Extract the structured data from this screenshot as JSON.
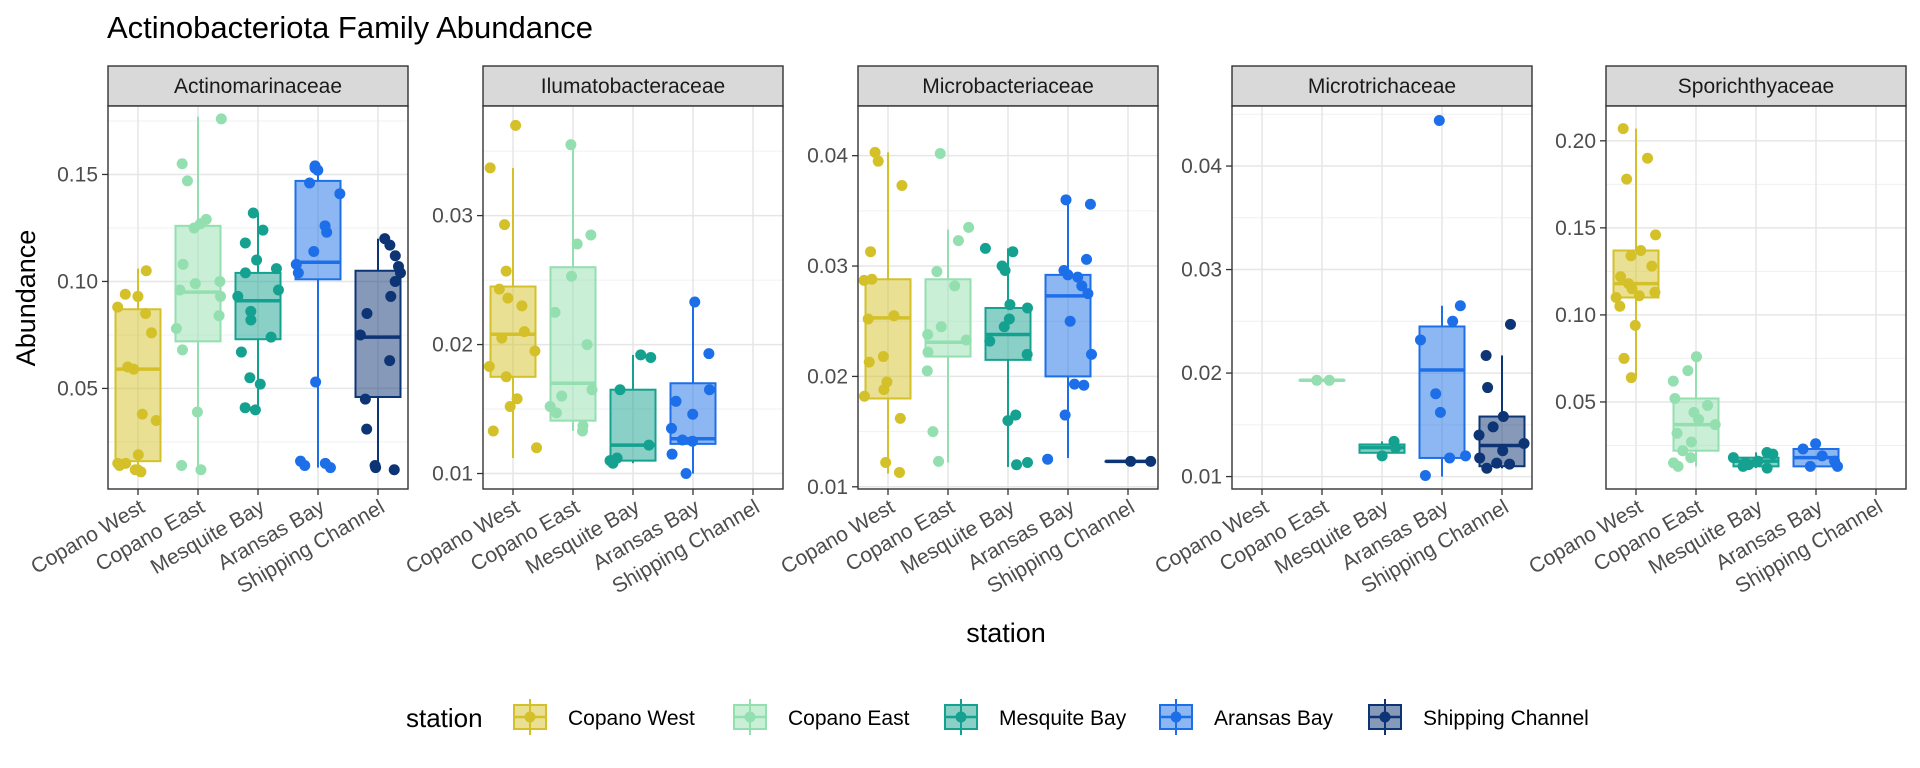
{
  "chart_data": {
    "type": "box",
    "title": "Actinobacteriota Family Abundance",
    "xlabel": "station",
    "ylabel": "Abundance",
    "legend_title": "station",
    "legend_position": "bottom",
    "categories": [
      "Copano West",
      "Copano East",
      "Mesquite Bay",
      "Aransas Bay",
      "Shipping Channel"
    ],
    "colors": {
      "Copano West": "#d4c12a",
      "Copano East": "#93dfb0",
      "Mesquite Bay": "#15a190",
      "Aransas Bay": "#1c6fe8",
      "Shipping Channel": "#0d3474"
    },
    "grid": true,
    "facets": [
      {
        "name": "Actinomarinaceae",
        "ylim": [
          0.003,
          0.182
        ],
        "yticks": [
          0.05,
          0.1,
          0.15
        ],
        "tick_labels": [
          "0.05",
          "0.10",
          "0.15"
        ],
        "boxes": [
          {
            "station": "Copano West",
            "min": 0.011,
            "q1": 0.016,
            "median": 0.059,
            "q3": 0.087,
            "max": 0.106
          },
          {
            "station": "Copano East",
            "min": 0.012,
            "q1": 0.072,
            "median": 0.095,
            "q3": 0.126,
            "max": 0.177
          },
          {
            "station": "Mesquite Bay",
            "min": 0.04,
            "q1": 0.073,
            "median": 0.091,
            "q3": 0.104,
            "max": 0.132
          },
          {
            "station": "Aransas Bay",
            "min": 0.013,
            "q1": 0.101,
            "median": 0.109,
            "q3": 0.147,
            "max": 0.154
          },
          {
            "station": "Shipping Channel",
            "min": 0.013,
            "q1": 0.046,
            "median": 0.074,
            "q3": 0.105,
            "max": 0.12
          }
        ],
        "points": [
          {
            "station": "Copano West",
            "values": [
              0.012,
              0.011,
              0.014,
              0.015,
              0.012,
              0.019,
              0.015,
              0.035,
              0.038,
              0.059,
              0.06,
              0.076,
              0.085,
              0.088,
              0.093,
              0.094,
              0.105
            ]
          },
          {
            "station": "Copano East",
            "values": [
              0.014,
              0.012,
              0.039,
              0.068,
              0.078,
              0.084,
              0.093,
              0.096,
              0.099,
              0.1,
              0.108,
              0.125,
              0.127,
              0.129,
              0.147,
              0.155,
              0.176
            ]
          },
          {
            "station": "Mesquite Bay",
            "values": [
              0.04,
              0.041,
              0.052,
              0.055,
              0.067,
              0.074,
              0.082,
              0.086,
              0.093,
              0.096,
              0.104,
              0.106,
              0.11,
              0.118,
              0.124,
              0.132
            ]
          },
          {
            "station": "Aransas Bay",
            "values": [
              0.013,
              0.015,
              0.016,
              0.014,
              0.053,
              0.104,
              0.108,
              0.114,
              0.123,
              0.126,
              0.141,
              0.146,
              0.153,
              0.152,
              0.154
            ]
          },
          {
            "station": "Shipping Channel",
            "values": [
              0.012,
              0.013,
              0.014,
              0.031,
              0.045,
              0.063,
              0.075,
              0.085,
              0.093,
              0.1,
              0.104,
              0.107,
              0.112,
              0.117,
              0.12
            ]
          }
        ]
      },
      {
        "name": "Ilumatobacteraceae",
        "ylim": [
          0.0088,
          0.0385
        ],
        "yticks": [
          0.01,
          0.02,
          0.03
        ],
        "tick_labels": [
          "0.01",
          "0.02",
          "0.03"
        ],
        "boxes": [
          {
            "station": "Copano West",
            "min": 0.0112,
            "q1": 0.0175,
            "median": 0.0208,
            "q3": 0.0245,
            "max": 0.0337
          },
          {
            "station": "Copano East",
            "min": 0.0133,
            "q1": 0.0141,
            "median": 0.017,
            "q3": 0.026,
            "max": 0.0355
          },
          {
            "station": "Mesquite Bay",
            "min": 0.0108,
            "q1": 0.011,
            "median": 0.0122,
            "q3": 0.0165,
            "max": 0.0192
          },
          {
            "station": "Aransas Bay",
            "min": 0.01,
            "q1": 0.0123,
            "median": 0.0127,
            "q3": 0.017,
            "max": 0.0233
          }
        ],
        "points": [
          {
            "station": "Copano West",
            "values": [
              0.037,
              0.0337,
              0.0293,
              0.0257,
              0.0243,
              0.0236,
              0.023,
              0.021,
              0.0205,
              0.0195,
              0.0183,
              0.0175,
              0.0158,
              0.0152,
              0.0133,
              0.012
            ]
          },
          {
            "station": "Copano East",
            "values": [
              0.0355,
              0.0285,
              0.0278,
              0.0253,
              0.0225,
              0.02,
              0.0165,
              0.016,
              0.0152,
              0.0147,
              0.0137,
              0.0133
            ]
          },
          {
            "station": "Mesquite Bay",
            "values": [
              0.0192,
              0.019,
              0.0165,
              0.0122,
              0.0112,
              0.011,
              0.0108,
              0.011
            ]
          },
          {
            "station": "Aransas Bay",
            "values": [
              0.0233,
              0.0193,
              0.0165,
              0.0156,
              0.0146,
              0.0135,
              0.0126,
              0.0125,
              0.0115,
              0.01
            ]
          }
        ]
      },
      {
        "name": "Microbacteriaceae",
        "ylim": [
          0.0098,
          0.0445
        ],
        "yticks": [
          0.01,
          0.02,
          0.03,
          0.04
        ],
        "tick_labels": [
          "0.01",
          "0.02",
          "0.03",
          "0.04"
        ],
        "boxes": [
          {
            "station": "Copano West",
            "min": 0.0112,
            "q1": 0.018,
            "median": 0.0253,
            "q3": 0.0288,
            "max": 0.0403
          },
          {
            "station": "Copano East",
            "min": 0.0122,
            "q1": 0.0218,
            "median": 0.0231,
            "q3": 0.0288,
            "max": 0.0333
          },
          {
            "station": "Mesquite Bay",
            "min": 0.0118,
            "q1": 0.0215,
            "median": 0.0238,
            "q3": 0.0262,
            "max": 0.0316
          },
          {
            "station": "Aransas Bay",
            "min": 0.0126,
            "q1": 0.02,
            "median": 0.0273,
            "q3": 0.0292,
            "max": 0.036
          },
          {
            "station": "Shipping Channel",
            "min": 0.0123,
            "q1": 0.0123,
            "median": 0.0123,
            "q3": 0.0123,
            "max": 0.0123
          }
        ],
        "points": [
          {
            "station": "Copano West",
            "values": [
              0.0403,
              0.0395,
              0.0373,
              0.0313,
              0.0288,
              0.0287,
              0.0255,
              0.0252,
              0.0218,
              0.0213,
              0.0195,
              0.0188,
              0.0182,
              0.0162,
              0.0122,
              0.0113
            ]
          },
          {
            "station": "Copano East",
            "values": [
              0.0402,
              0.0335,
              0.0323,
              0.0282,
              0.0295,
              0.0245,
              0.0238,
              0.0233,
              0.0222,
              0.0205,
              0.015,
              0.0123
            ]
          },
          {
            "station": "Mesquite Bay",
            "values": [
              0.0316,
              0.0313,
              0.0296,
              0.03,
              0.0265,
              0.0262,
              0.0252,
              0.0245,
              0.0232,
              0.022,
              0.0165,
              0.016,
              0.0122,
              0.012
            ]
          },
          {
            "station": "Aransas Bay",
            "values": [
              0.036,
              0.0356,
              0.0306,
              0.0296,
              0.0292,
              0.029,
              0.0282,
              0.0275,
              0.025,
              0.022,
              0.0193,
              0.0192,
              0.0165,
              0.0125
            ]
          },
          {
            "station": "Shipping Channel",
            "values": [
              0.0123,
              0.0123
            ]
          }
        ]
      },
      {
        "name": "Microtrichaceae",
        "ylim": [
          0.0088,
          0.0458
        ],
        "yticks": [
          0.01,
          0.02,
          0.03,
          0.04
        ],
        "tick_labels": [
          "0.01",
          "0.02",
          "0.03",
          "0.04"
        ],
        "boxes": [
          {
            "station": "Copano East",
            "min": 0.0193,
            "q1": 0.0193,
            "median": 0.0193,
            "q3": 0.0193,
            "max": 0.0193
          },
          {
            "station": "Mesquite Bay",
            "min": 0.012,
            "q1": 0.0123,
            "median": 0.0128,
            "q3": 0.0131,
            "max": 0.0134
          },
          {
            "station": "Aransas Bay",
            "min": 0.01,
            "q1": 0.0118,
            "median": 0.0203,
            "q3": 0.0245,
            "max": 0.0265
          },
          {
            "station": "Shipping Channel",
            "min": 0.0108,
            "q1": 0.011,
            "median": 0.013,
            "q3": 0.0158,
            "max": 0.0217
          }
        ],
        "points": [
          {
            "station": "Copano East",
            "values": [
              0.0193,
              0.0193
            ]
          },
          {
            "station": "Mesquite Bay",
            "values": [
              0.0134,
              0.0128,
              0.012
            ]
          },
          {
            "station": "Aransas Bay",
            "values": [
              0.0444,
              0.0265,
              0.025,
              0.0232,
              0.018,
              0.0162,
              0.012,
              0.0118,
              0.0101
            ]
          },
          {
            "station": "Shipping Channel",
            "values": [
              0.0247,
              0.0217,
              0.0186,
              0.0158,
              0.0148,
              0.014,
              0.0132,
              0.0125,
              0.0118,
              0.0113,
              0.0108,
              0.0112
            ]
          }
        ]
      },
      {
        "name": "Sporichthyaceae",
        "ylim": [
          0.0,
          0.22
        ],
        "yticks": [
          0.05,
          0.1,
          0.15,
          0.2
        ],
        "tick_labels": [
          "0.05",
          "0.10",
          "0.15",
          "0.20"
        ],
        "boxes": [
          {
            "station": "Copano West",
            "min": 0.064,
            "q1": 0.11,
            "median": 0.118,
            "q3": 0.137,
            "max": 0.207
          },
          {
            "station": "Copano East",
            "min": 0.013,
            "q1": 0.022,
            "median": 0.037,
            "q3": 0.052,
            "max": 0.076
          },
          {
            "station": "Mesquite Bay",
            "min": 0.012,
            "q1": 0.013,
            "median": 0.016,
            "q3": 0.018,
            "max": 0.021
          },
          {
            "station": "Aransas Bay",
            "min": 0.013,
            "q1": 0.013,
            "median": 0.018,
            "q3": 0.023,
            "max": 0.026
          }
        ],
        "points": [
          {
            "station": "Copano West",
            "values": [
              0.207,
              0.19,
              0.178,
              0.146,
              0.137,
              0.134,
              0.128,
              0.122,
              0.118,
              0.115,
              0.113,
              0.111,
              0.11,
              0.105,
              0.094,
              0.075,
              0.064
            ]
          },
          {
            "station": "Copano East",
            "values": [
              0.076,
              0.068,
              0.062,
              0.052,
              0.048,
              0.044,
              0.04,
              0.037,
              0.032,
              0.027,
              0.022,
              0.018,
              0.015,
              0.013
            ]
          },
          {
            "station": "Mesquite Bay",
            "values": [
              0.021,
              0.02,
              0.018,
              0.016,
              0.015,
              0.014,
              0.013,
              0.012
            ]
          },
          {
            "station": "Aransas Bay",
            "values": [
              0.026,
              0.023,
              0.019,
              0.016,
              0.013,
              0.013
            ]
          }
        ]
      }
    ]
  }
}
